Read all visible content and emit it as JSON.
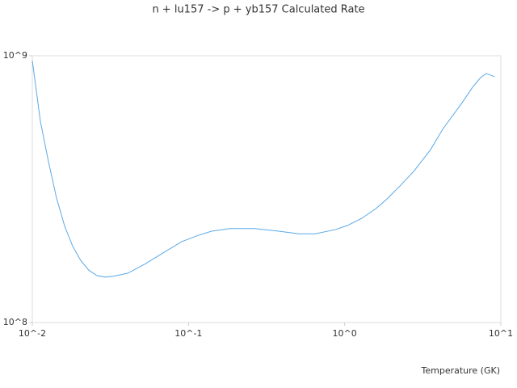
{
  "chart_data": {
    "type": "line",
    "title": "n + lu157 -> p + yb157 Calculated Rate",
    "x_label": "Temperature (GK)",
    "x_log": true,
    "y_log": true,
    "xlim": [
      0.01,
      10
    ],
    "ylim": [
      100000000,
      1000000000
    ],
    "xticks": [
      {
        "value": 0.01,
        "label": "10^-2"
      },
      {
        "value": 0.1,
        "label": "10^-1"
      },
      {
        "value": 1,
        "label": "10^0"
      },
      {
        "value": 10,
        "label": "10^1"
      }
    ],
    "yticks": [
      {
        "value": 100000000,
        "label": "10^8"
      },
      {
        "value": 1000000000,
        "label": "10^9"
      }
    ],
    "series": [
      {
        "color": "#5aa9e6",
        "x": [
          0.01,
          0.01126,
          0.01269,
          0.01429,
          0.0161,
          0.01815,
          0.0204,
          0.023,
          0.0259,
          0.0292,
          0.0329,
          0.0408,
          0.053,
          0.0673,
          0.0906,
          0.1148,
          0.1406,
          0.185,
          0.265,
          0.378,
          0.509,
          0.646,
          0.871,
          1.04,
          1.29,
          1.58,
          1.85,
          2.26,
          2.77,
          3.55,
          4.24,
          5.65,
          6.59,
          7.43,
          8.07,
          9.1
        ],
        "values": [
          959000000,
          569000000,
          401000000,
          293000000,
          230000000,
          193000000,
          171000000,
          157000000,
          150000000,
          148000000,
          149000000,
          153000000,
          166000000,
          181000000,
          201000000,
          212000000,
          220000000,
          225000000,
          225000000,
          220000000,
          215000000,
          215000000,
          223000000,
          231000000,
          246000000,
          267000000,
          289000000,
          325000000,
          369000000,
          445000000,
          530000000,
          667000000,
          762000000,
          829000000,
          858000000,
          835000000
        ]
      }
    ]
  }
}
